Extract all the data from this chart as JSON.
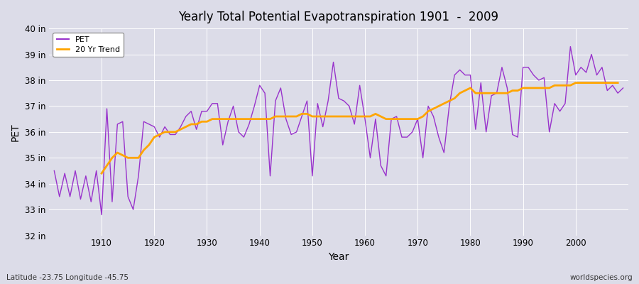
{
  "title": "Yearly Total Potential Evapotranspiration 1901  -  2009",
  "xlabel": "Year",
  "ylabel": "PET",
  "footnote_left": "Latitude -23.75 Longitude -45.75",
  "footnote_right": "worldspecies.org",
  "background_color": "#dcdce8",
  "plot_bg_color": "#dcdce8",
  "pet_color": "#9933CC",
  "trend_color": "#FFA500",
  "ylim": [
    32,
    40
  ],
  "yticks": [
    32,
    33,
    34,
    35,
    36,
    37,
    38,
    39,
    40
  ],
  "ytick_labels": [
    "32 in",
    "33 in",
    "34 in",
    "35 in",
    "36 in",
    "37 in",
    "38 in",
    "39 in",
    "40 in"
  ],
  "xticks": [
    1910,
    1920,
    1930,
    1940,
    1950,
    1960,
    1970,
    1980,
    1990,
    2000
  ],
  "years": [
    1901,
    1902,
    1903,
    1904,
    1905,
    1906,
    1907,
    1908,
    1909,
    1910,
    1911,
    1912,
    1913,
    1914,
    1915,
    1916,
    1917,
    1918,
    1919,
    1920,
    1921,
    1922,
    1923,
    1924,
    1925,
    1926,
    1927,
    1928,
    1929,
    1930,
    1931,
    1932,
    1933,
    1934,
    1935,
    1936,
    1937,
    1938,
    1939,
    1940,
    1941,
    1942,
    1943,
    1944,
    1945,
    1946,
    1947,
    1948,
    1949,
    1950,
    1951,
    1952,
    1953,
    1954,
    1955,
    1956,
    1957,
    1958,
    1959,
    1960,
    1961,
    1962,
    1963,
    1964,
    1965,
    1966,
    1967,
    1968,
    1969,
    1970,
    1971,
    1972,
    1973,
    1974,
    1975,
    1976,
    1977,
    1978,
    1979,
    1980,
    1981,
    1982,
    1983,
    1984,
    1985,
    1986,
    1987,
    1988,
    1989,
    1990,
    1991,
    1992,
    1993,
    1994,
    1995,
    1996,
    1997,
    1998,
    1999,
    2000,
    2001,
    2002,
    2003,
    2004,
    2005,
    2006,
    2007,
    2008,
    2009
  ],
  "pet_values": [
    34.5,
    33.5,
    34.4,
    33.5,
    34.5,
    33.4,
    34.3,
    33.3,
    34.5,
    32.8,
    36.9,
    33.3,
    36.3,
    36.4,
    33.5,
    33.0,
    34.3,
    36.4,
    36.3,
    36.2,
    35.8,
    36.2,
    35.9,
    35.9,
    36.2,
    36.6,
    36.8,
    36.1,
    36.8,
    36.8,
    37.1,
    37.1,
    35.5,
    36.4,
    37.0,
    36.0,
    35.8,
    36.3,
    37.0,
    37.8,
    37.5,
    34.3,
    37.2,
    37.7,
    36.5,
    35.9,
    36.0,
    36.6,
    37.2,
    34.3,
    37.1,
    36.2,
    37.2,
    38.7,
    37.3,
    37.2,
    37.0,
    36.3,
    37.8,
    36.5,
    35.0,
    36.5,
    34.7,
    34.3,
    36.5,
    36.6,
    35.8,
    35.8,
    36.0,
    36.5,
    35.0,
    37.0,
    36.6,
    35.8,
    35.2,
    37.0,
    38.2,
    38.4,
    38.2,
    38.2,
    36.1,
    37.9,
    36.0,
    37.4,
    37.5,
    38.5,
    37.7,
    35.9,
    35.8,
    38.5,
    38.5,
    38.2,
    38.0,
    38.1,
    36.0,
    37.1,
    36.8,
    37.1,
    39.3,
    38.2,
    38.5,
    38.3,
    39.0,
    38.2,
    38.5,
    37.6,
    37.8,
    37.5,
    37.7
  ],
  "trend_start_year": 1910,
  "trend_values_clean": [
    34.4,
    34.7,
    35.0,
    35.2,
    35.1,
    35.0,
    35.0,
    35.0,
    35.3,
    35.5,
    35.8,
    35.9,
    36.0,
    36.0,
    36.0,
    36.1,
    36.2,
    36.3,
    36.3,
    36.4,
    36.4,
    36.5,
    36.5,
    36.5,
    36.5,
    36.5,
    36.5,
    36.5,
    36.5,
    36.5,
    36.5,
    36.5,
    36.5,
    36.6,
    36.6,
    36.6,
    36.6,
    36.6,
    36.7,
    36.7,
    36.6,
    36.6,
    36.6,
    36.6,
    36.6,
    36.6,
    36.6,
    36.6,
    36.6,
    36.6,
    36.6,
    36.6,
    36.7,
    36.6,
    36.5,
    36.5,
    36.5,
    36.5,
    36.5,
    36.5,
    36.5,
    36.6,
    36.8,
    36.9,
    37.0,
    37.1,
    37.2,
    37.3,
    37.5,
    37.6,
    37.7,
    37.5,
    37.5,
    37.5,
    37.5,
    37.5,
    37.5,
    37.5,
    37.6,
    37.6,
    37.7,
    37.7,
    37.7,
    37.7,
    37.7,
    37.7,
    37.8,
    37.8,
    37.8,
    37.8,
    37.9,
    37.9,
    37.9,
    37.9,
    37.9,
    37.9,
    37.9,
    37.9,
    37.9
  ]
}
